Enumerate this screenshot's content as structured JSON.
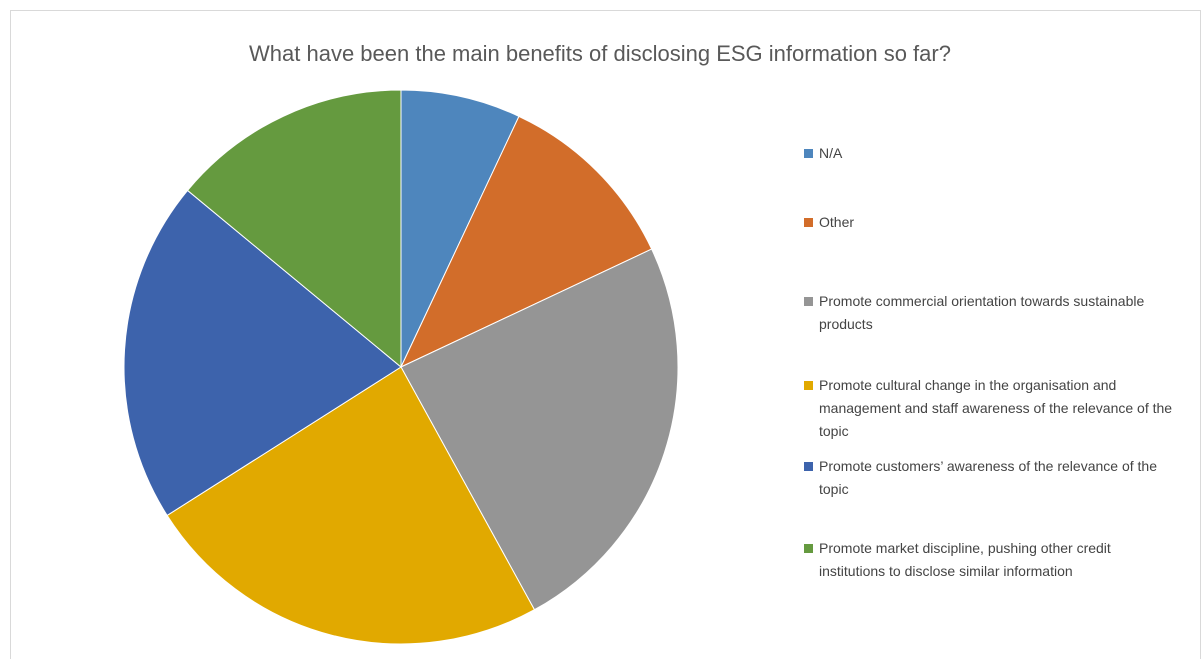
{
  "chart_data": {
    "type": "pie",
    "title": "What have been the main benefits of disclosing ESG information so far?",
    "categories": [
      "N/A",
      "Other",
      "Promote commercial orientation towards sustainable products",
      "Promote cultural change in the organisation and management and staff awareness of the relevance of the topic",
      "Promote customers’ awareness of the relevance of the topic",
      "Promote market discipline, pushing other credit institutions to disclose similar information"
    ],
    "values": [
      7,
      11,
      24,
      24,
      20,
      14
    ],
    "colors": [
      "#4e86bd",
      "#d26d2a",
      "#959595",
      "#e1a900",
      "#3d63ac",
      "#659a3f"
    ],
    "legend": "right"
  }
}
